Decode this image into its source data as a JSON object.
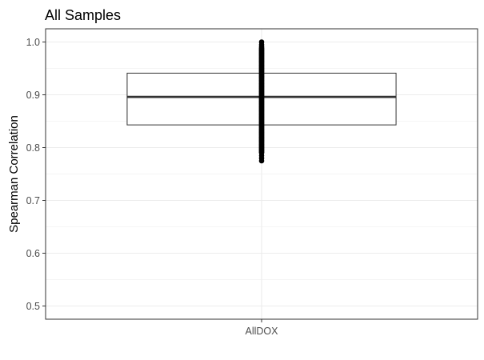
{
  "chart_data": {
    "type": "box",
    "title": "All Samples",
    "xlabel": "",
    "ylabel": "Spearman Correlation",
    "categories": [
      "AllDOX"
    ],
    "ylim": [
      0.475,
      1.025
    ],
    "yticks": [
      0.5,
      0.6,
      0.7,
      0.8,
      0.9,
      1.0
    ],
    "ytick_labels": [
      "0.5",
      "0.6",
      "0.7",
      "0.8",
      "0.9",
      "1.0"
    ],
    "grid": true,
    "legend": "none",
    "boxes": [
      {
        "category": "AllDOX",
        "q1": 0.843,
        "median": 0.896,
        "q3": 0.941,
        "whisker_low": 0.79,
        "whisker_high": 0.99,
        "outliers": [
          0.775,
          0.78,
          0.785,
          0.992,
          0.995,
          1.0
        ]
      }
    ],
    "colors": {
      "box_fill": "#ffffff",
      "box_line": "#333333",
      "points": "#000000",
      "grid": "#ebebeb",
      "panel_border": "#333333"
    }
  }
}
